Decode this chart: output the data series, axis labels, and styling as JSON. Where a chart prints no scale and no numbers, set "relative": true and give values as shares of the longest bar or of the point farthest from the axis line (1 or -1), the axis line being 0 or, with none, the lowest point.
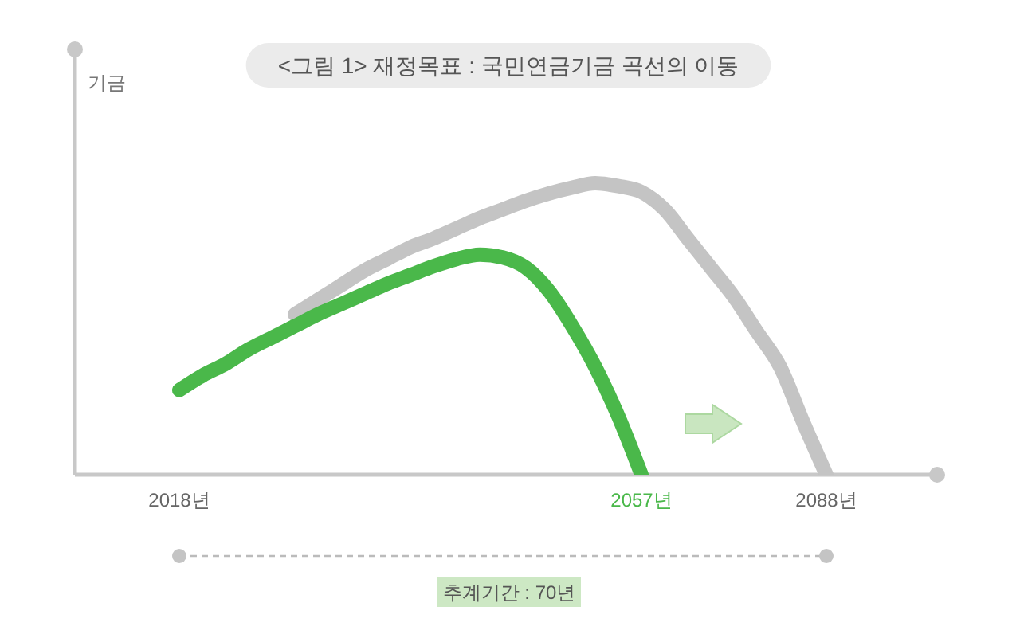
{
  "chart_data": {
    "type": "line",
    "relative": true,
    "title": "<그림 1> 재정목표 : 국민연금기금 곡선의 이동",
    "ylabel": "기금",
    "annotations": [
      "추계기간 : 70년"
    ],
    "categories": [
      "2018년",
      null,
      null,
      null,
      null,
      null,
      null,
      null,
      null,
      null,
      null,
      null,
      null,
      null,
      null,
      null,
      null,
      null,
      null,
      null,
      "2057년",
      null,
      null,
      null,
      null,
      null,
      null,
      null,
      "2088년",
      null,
      null,
      null,
      null
    ],
    "series": [
      {
        "color": "#c4c4c4",
        "values": [
          null,
          null,
          null,
          null,
          null,
          0.55,
          0.6,
          0.65,
          0.7,
          0.74,
          0.78,
          0.81,
          0.845,
          0.88,
          0.91,
          0.94,
          0.965,
          0.985,
          1,
          0.99,
          0.97,
          0.91,
          0.81,
          0.71,
          0.61,
          0.49,
          0.37,
          0.18,
          0,
          null,
          null,
          null,
          null
        ]
      },
      {
        "color": "#4ab84a",
        "values": [
          0.29,
          0.34,
          0.38,
          0.43,
          0.47,
          0.51,
          0.55,
          0.585,
          0.62,
          0.655,
          0.685,
          0.715,
          0.74,
          0.755,
          0.745,
          0.71,
          0.63,
          0.51,
          0.37,
          0.2,
          0,
          null,
          null,
          null,
          null,
          null,
          null,
          null,
          null,
          null,
          null,
          null,
          null
        ]
      }
    ]
  }
}
